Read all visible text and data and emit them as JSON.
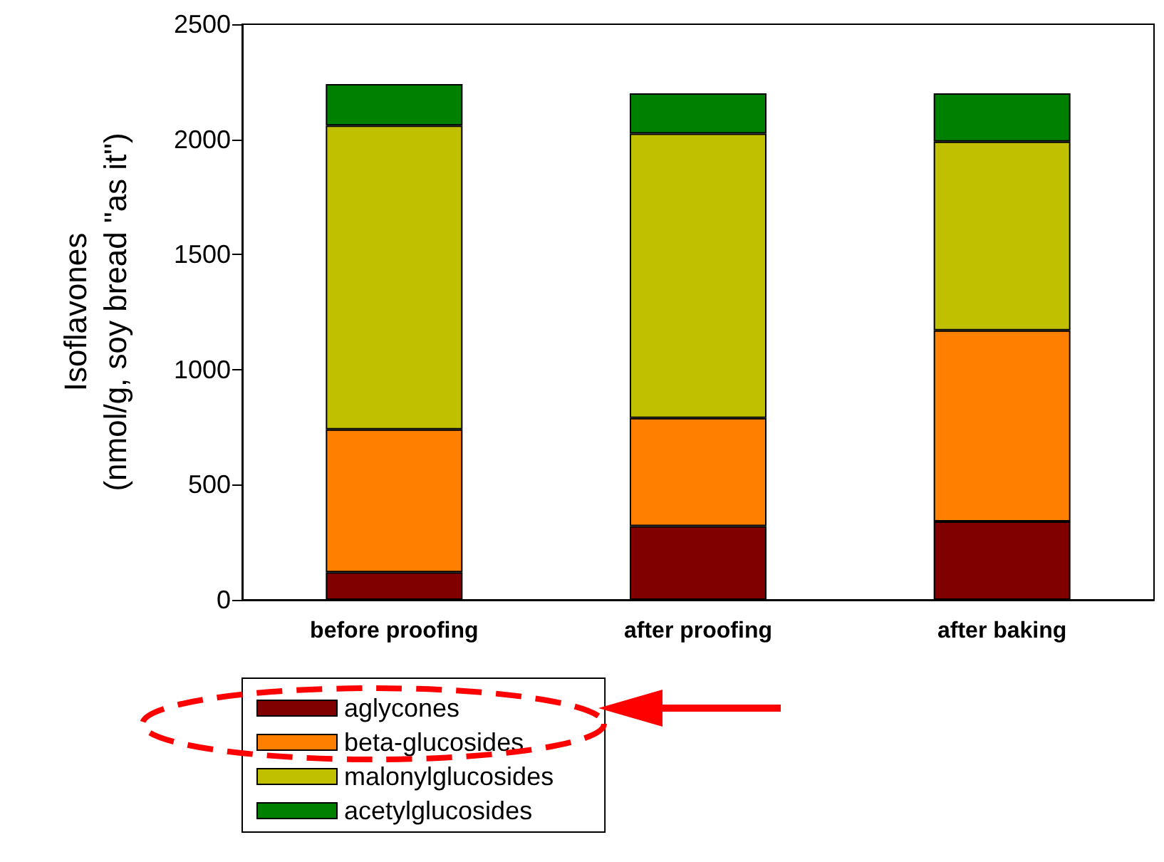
{
  "chart_data": {
    "type": "bar",
    "stacked": true,
    "ylabel": "Isoflavones\n(nmol/g, soy bread \"as it\")",
    "categories": [
      "before proofing",
      "after proofing",
      "after baking"
    ],
    "series": [
      {
        "name": "aglycones",
        "color": "#800000",
        "values": [
          120,
          320,
          340
        ]
      },
      {
        "name": "beta-glucosides",
        "color": "#ff8000",
        "values": [
          620,
          470,
          830
        ]
      },
      {
        "name": "malonylglucosides",
        "color": "#c0c000",
        "values": [
          1320,
          1235,
          820
        ]
      },
      {
        "name": "acetylglucosides",
        "color": "#008000",
        "values": [
          180,
          175,
          210
        ]
      }
    ],
    "ylim": [
      0,
      2500
    ],
    "yticks": [
      0,
      500,
      1000,
      1500,
      2000,
      2500
    ],
    "grid": false,
    "legend": "bottom left"
  }
}
